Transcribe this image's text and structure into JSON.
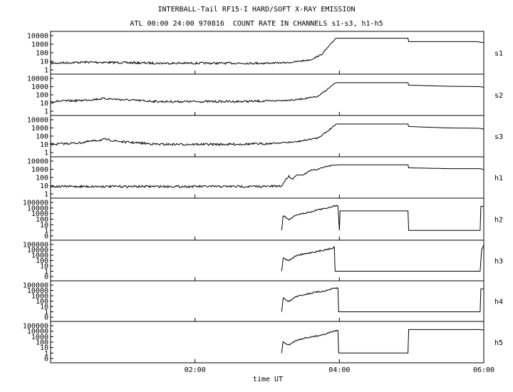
{
  "header": {
    "title_line1": "INTERBALL-Tail RF15-I HARD/SOFT X-RAY EMISSION",
    "title_line2": "ATL 00:00 24:00 970816  COUNT RATE IN CHANNELS s1-s3, h1-h5"
  },
  "chart_data": {
    "type": "line",
    "xlabel": "time UT",
    "x_ticks": [
      "02:00",
      "04:00",
      "06:00"
    ],
    "x_tick_hours": [
      2,
      4,
      6
    ],
    "xlim_hours": [
      0,
      6
    ],
    "y_scale": "log",
    "series": [
      {
        "name": "s1",
        "yticks": [
          "10000",
          "1000",
          "100",
          "10",
          "1"
        ],
        "ylim": [
          1,
          10000
        ],
        "points": [
          [
            0,
            6
          ],
          [
            0.5,
            8
          ],
          [
            1,
            7
          ],
          [
            1.5,
            6
          ],
          [
            2,
            6
          ],
          [
            2.5,
            6
          ],
          [
            3,
            6
          ],
          [
            3.3,
            7
          ],
          [
            3.6,
            15
          ],
          [
            3.75,
            60
          ],
          [
            3.85,
            500
          ],
          [
            3.95,
            5000
          ],
          [
            4.0,
            5000
          ],
          [
            4.5,
            5000
          ],
          [
            4.95,
            5000
          ],
          [
            4.96,
            2000
          ],
          [
            5.5,
            2000
          ],
          [
            5.9,
            2000
          ],
          [
            6.0,
            1500
          ]
        ]
      },
      {
        "name": "s2",
        "yticks": [
          "10000",
          "1000",
          "100",
          "10",
          "1"
        ],
        "ylim": [
          1,
          10000
        ],
        "points": [
          [
            0,
            15
          ],
          [
            0.4,
            20
          ],
          [
            0.75,
            35
          ],
          [
            1,
            25
          ],
          [
            1.5,
            15
          ],
          [
            2,
            15
          ],
          [
            2.5,
            15
          ],
          [
            3,
            17
          ],
          [
            3.4,
            25
          ],
          [
            3.7,
            60
          ],
          [
            3.85,
            600
          ],
          [
            3.95,
            3000
          ],
          [
            4.0,
            3000
          ],
          [
            4.95,
            3000
          ],
          [
            4.96,
            1500
          ],
          [
            5.5,
            1100
          ],
          [
            5.95,
            1000
          ],
          [
            6.0,
            800
          ]
        ]
      },
      {
        "name": "s3",
        "yticks": [
          "10000",
          "1000",
          "100",
          "10",
          "1"
        ],
        "ylim": [
          1,
          10000
        ],
        "points": [
          [
            0,
            10
          ],
          [
            0.4,
            15
          ],
          [
            0.75,
            40
          ],
          [
            1,
            20
          ],
          [
            1.5,
            10
          ],
          [
            2,
            10
          ],
          [
            2.5,
            10
          ],
          [
            3,
            12
          ],
          [
            3.4,
            20
          ],
          [
            3.7,
            60
          ],
          [
            3.85,
            500
          ],
          [
            3.95,
            3000
          ],
          [
            4.0,
            3000
          ],
          [
            4.95,
            3000
          ],
          [
            4.96,
            1500
          ],
          [
            5.5,
            1000
          ],
          [
            5.95,
            900
          ],
          [
            6.0,
            700
          ]
        ]
      },
      {
        "name": "h1",
        "yticks": [
          "10000",
          "1000",
          "100",
          "10",
          "1"
        ],
        "ylim": [
          1,
          10000
        ],
        "points": [
          [
            0,
            8
          ],
          [
            0.5,
            8
          ],
          [
            1,
            8
          ],
          [
            1.5,
            8
          ],
          [
            2,
            8
          ],
          [
            2.5,
            8
          ],
          [
            3,
            8
          ],
          [
            3.2,
            9
          ],
          [
            3.25,
            50
          ],
          [
            3.3,
            150
          ],
          [
            3.35,
            60
          ],
          [
            3.4,
            200
          ],
          [
            3.5,
            200
          ],
          [
            3.6,
            700
          ],
          [
            3.7,
            1000
          ],
          [
            3.8,
            2000
          ],
          [
            3.9,
            3000
          ],
          [
            4.0,
            3500
          ],
          [
            4.95,
            3500
          ],
          [
            4.96,
            1500
          ],
          [
            5.5,
            1200
          ],
          [
            5.95,
            1200
          ],
          [
            6.0,
            900
          ]
        ]
      },
      {
        "name": "h2",
        "yticks": [
          "100000",
          "10000",
          "1000",
          "100",
          "10",
          "1",
          "0"
        ],
        "ylim": [
          1,
          100000
        ],
        "points": [
          [
            3.2,
            1
          ],
          [
            3.22,
            500
          ],
          [
            3.3,
            80
          ],
          [
            3.4,
            600
          ],
          [
            3.5,
            1000
          ],
          [
            3.6,
            2000
          ],
          [
            3.7,
            5000
          ],
          [
            3.8,
            8000
          ],
          [
            3.9,
            20000
          ],
          [
            3.98,
            30000
          ],
          [
            4.0,
            1
          ],
          [
            4.01,
            3000
          ],
          [
            4.95,
            3000
          ],
          [
            4.96,
            1
          ],
          [
            5.95,
            1
          ],
          [
            5.96,
            20000
          ],
          [
            6.0,
            20000
          ]
        ]
      },
      {
        "name": "h3",
        "yticks": [
          "100000",
          "10000",
          "1000",
          "100",
          "10",
          "1",
          "0"
        ],
        "ylim": [
          1,
          100000
        ],
        "points": [
          [
            3.2,
            1
          ],
          [
            3.22,
            300
          ],
          [
            3.3,
            100
          ],
          [
            3.4,
            800
          ],
          [
            3.5,
            1500
          ],
          [
            3.6,
            3000
          ],
          [
            3.7,
            5000
          ],
          [
            3.8,
            10000
          ],
          [
            3.9,
            20000
          ],
          [
            3.93,
            30000
          ],
          [
            3.94,
            1
          ],
          [
            5.95,
            1
          ],
          [
            5.97,
            10000
          ],
          [
            6.0,
            80000
          ]
        ]
      },
      {
        "name": "h4",
        "yticks": [
          "100000",
          "10000",
          "1000",
          "100",
          "10",
          "1",
          "0"
        ],
        "ylim": [
          1,
          100000
        ],
        "points": [
          [
            3.2,
            1
          ],
          [
            3.22,
            400
          ],
          [
            3.3,
            80
          ],
          [
            3.4,
            700
          ],
          [
            3.5,
            1500
          ],
          [
            3.6,
            3000
          ],
          [
            3.7,
            5000
          ],
          [
            3.8,
            8000
          ],
          [
            3.9,
            20000
          ],
          [
            3.98,
            30000
          ],
          [
            3.99,
            1
          ],
          [
            5.95,
            1
          ],
          [
            5.96,
            20000
          ],
          [
            6.0,
            20000
          ]
        ]
      },
      {
        "name": "h5",
        "yticks": [
          "100000",
          "10000",
          "1000",
          "100",
          "10",
          "1",
          "0"
        ],
        "ylim": [
          1,
          100000
        ],
        "points": [
          [
            3.2,
            1
          ],
          [
            3.22,
            100
          ],
          [
            3.3,
            30
          ],
          [
            3.4,
            200
          ],
          [
            3.5,
            500
          ],
          [
            3.6,
            800
          ],
          [
            3.7,
            1500
          ],
          [
            3.8,
            3000
          ],
          [
            3.9,
            8000
          ],
          [
            3.98,
            15000
          ],
          [
            3.99,
            1
          ],
          [
            4.95,
            1
          ],
          [
            4.96,
            20000
          ],
          [
            5.95,
            20000
          ],
          [
            5.96,
            18000
          ],
          [
            6.0,
            18000
          ]
        ]
      }
    ]
  }
}
